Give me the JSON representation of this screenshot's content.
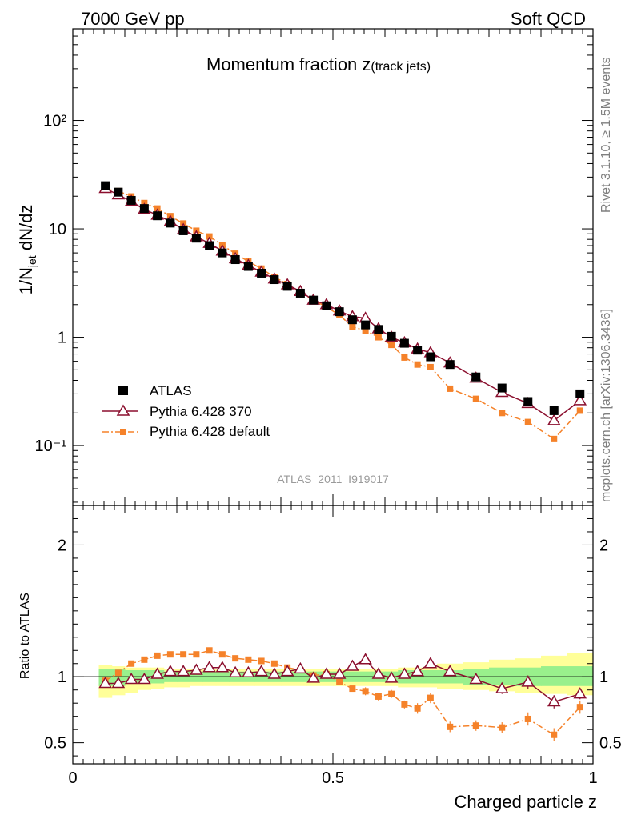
{
  "header": {
    "left": "7000 GeV pp",
    "right": "Soft QCD"
  },
  "side_labels": {
    "rivet": "Rivet 3.1.10, ≥ 1.5M events",
    "mcplots": "mcplots.cern.ch [arXiv:1306.3436]"
  },
  "colors": {
    "atlas": "#000000",
    "pythia370": "#8b0f2e",
    "pythia_default": "#f5822a",
    "band_inner": "#99f08c",
    "band_outer": "#ffff99"
  },
  "chart_data": [
    {
      "type": "scatter",
      "title": "Momentum fraction z",
      "title_sub": "(track jets)",
      "analysis_label": "ATLAS_2011_I919017",
      "ylabel_main": "1/N",
      "ylabel_sub": "jet",
      "ylabel_rest": " dN/dz",
      "yscale": "log",
      "ylim": [
        0.028,
        700
      ],
      "xlim": [
        0,
        1
      ],
      "ytick_labels": [
        "10⁻¹",
        "1",
        "10",
        "10²"
      ],
      "ytick_values": [
        0.1,
        1,
        10,
        100
      ],
      "legend_position": "lower-left",
      "x": [
        0.0625,
        0.0875,
        0.1125,
        0.1375,
        0.1625,
        0.1875,
        0.2125,
        0.2375,
        0.2625,
        0.2875,
        0.3125,
        0.3375,
        0.3625,
        0.3875,
        0.4125,
        0.4375,
        0.4625,
        0.4875,
        0.5125,
        0.5375,
        0.5625,
        0.5875,
        0.6125,
        0.6375,
        0.6625,
        0.6875,
        0.725,
        0.775,
        0.825,
        0.875,
        0.925,
        0.975
      ],
      "series": [
        {
          "name": "ATLAS",
          "marker": "filled-square",
          "values": [
            25.0,
            21.8,
            18.3,
            15.4,
            13.2,
            11.3,
            9.6,
            8.2,
            7.0,
            6.0,
            5.2,
            4.5,
            3.9,
            3.4,
            2.95,
            2.55,
            2.2,
            1.95,
            1.72,
            1.45,
            1.3,
            1.18,
            1.02,
            0.88,
            0.76,
            0.66,
            0.56,
            0.43,
            0.34,
            0.255,
            0.21,
            0.3
          ]
        },
        {
          "name": "Pythia 6.428 370",
          "marker": "open-triangle",
          "values": [
            23.6,
            20.6,
            17.9,
            15.1,
            13.4,
            11.7,
            9.85,
            8.45,
            7.35,
            6.25,
            5.3,
            4.6,
            4.0,
            3.45,
            3.05,
            2.65,
            2.2,
            2.0,
            1.75,
            1.55,
            1.5,
            1.2,
            1.0,
            0.89,
            0.78,
            0.72,
            0.58,
            0.42,
            0.31,
            0.245,
            0.17,
            0.26
          ]
        },
        {
          "name": "Pythia 6.428 default",
          "marker": "small-square-dashdot",
          "values": [
            23.2,
            22.3,
            19.9,
            17.3,
            15.4,
            13.1,
            11.2,
            9.6,
            8.5,
            7.1,
            5.9,
            5.0,
            4.3,
            3.6,
            3.1,
            2.6,
            2.2,
            1.9,
            1.6,
            1.25,
            1.15,
            1.0,
            0.85,
            0.65,
            0.56,
            0.53,
            0.335,
            0.27,
            0.2,
            0.165,
            0.115,
            0.21
          ]
        }
      ]
    },
    {
      "type": "scatter",
      "title": "Ratio to ATLAS",
      "xlabel": "Charged particle z",
      "ylabel": "Ratio to ATLAS",
      "xlim": [
        0,
        1
      ],
      "ylim": [
        0.34,
        2.3
      ],
      "xtick_labels": [
        "0",
        "0.5",
        "1"
      ],
      "xtick_values": [
        0,
        0.5,
        1
      ],
      "ytick_labels": [
        "0.5",
        "1",
        "2"
      ],
      "ytick_values": [
        0.5,
        1,
        2
      ],
      "x": [
        0.0625,
        0.0875,
        0.1125,
        0.1375,
        0.1625,
        0.1875,
        0.2125,
        0.2375,
        0.2625,
        0.2875,
        0.3125,
        0.3375,
        0.3625,
        0.3875,
        0.4125,
        0.4375,
        0.4625,
        0.4875,
        0.5125,
        0.5375,
        0.5625,
        0.5875,
        0.6125,
        0.6375,
        0.6625,
        0.6875,
        0.725,
        0.775,
        0.825,
        0.875,
        0.925,
        0.975
      ],
      "bin_edges": [
        0.05,
        0.075,
        0.1,
        0.125,
        0.15,
        0.175,
        0.2,
        0.225,
        0.25,
        0.275,
        0.3,
        0.325,
        0.35,
        0.375,
        0.4,
        0.425,
        0.45,
        0.475,
        0.5,
        0.525,
        0.55,
        0.575,
        0.6,
        0.625,
        0.65,
        0.675,
        0.7,
        0.75,
        0.8,
        0.85,
        0.9,
        0.95,
        1.0
      ],
      "band_inner": [
        [
          0.93,
          1.06
        ],
        [
          0.93,
          1.06
        ],
        [
          0.95,
          1.05
        ],
        [
          0.95,
          1.05
        ],
        [
          0.95,
          1.05
        ],
        [
          0.96,
          1.04
        ],
        [
          0.96,
          1.04
        ],
        [
          0.96,
          1.04
        ],
        [
          0.96,
          1.04
        ],
        [
          0.96,
          1.04
        ],
        [
          0.96,
          1.04
        ],
        [
          0.96,
          1.04
        ],
        [
          0.96,
          1.04
        ],
        [
          0.96,
          1.04
        ],
        [
          0.96,
          1.04
        ],
        [
          0.96,
          1.04
        ],
        [
          0.96,
          1.04
        ],
        [
          0.96,
          1.04
        ],
        [
          0.96,
          1.04
        ],
        [
          0.96,
          1.04
        ],
        [
          0.96,
          1.04
        ],
        [
          0.96,
          1.04
        ],
        [
          0.96,
          1.04
        ],
        [
          0.95,
          1.05
        ],
        [
          0.95,
          1.05
        ],
        [
          0.95,
          1.05
        ],
        [
          0.95,
          1.05
        ],
        [
          0.94,
          1.06
        ],
        [
          0.94,
          1.07
        ],
        [
          0.93,
          1.07
        ],
        [
          0.93,
          1.08
        ],
        [
          0.93,
          1.08
        ]
      ],
      "band_outer": [
        [
          0.84,
          1.09
        ],
        [
          0.86,
          1.08
        ],
        [
          0.88,
          1.07
        ],
        [
          0.9,
          1.07
        ],
        [
          0.91,
          1.07
        ],
        [
          0.92,
          1.06
        ],
        [
          0.92,
          1.06
        ],
        [
          0.93,
          1.06
        ],
        [
          0.93,
          1.06
        ],
        [
          0.93,
          1.06
        ],
        [
          0.93,
          1.06
        ],
        [
          0.93,
          1.06
        ],
        [
          0.93,
          1.06
        ],
        [
          0.93,
          1.06
        ],
        [
          0.93,
          1.06
        ],
        [
          0.93,
          1.06
        ],
        [
          0.93,
          1.06
        ],
        [
          0.93,
          1.06
        ],
        [
          0.93,
          1.06
        ],
        [
          0.93,
          1.06
        ],
        [
          0.93,
          1.06
        ],
        [
          0.93,
          1.06
        ],
        [
          0.93,
          1.06
        ],
        [
          0.92,
          1.07
        ],
        [
          0.92,
          1.07
        ],
        [
          0.92,
          1.07
        ],
        [
          0.91,
          1.1
        ],
        [
          0.9,
          1.11
        ],
        [
          0.89,
          1.13
        ],
        [
          0.88,
          1.14
        ],
        [
          0.87,
          1.16
        ],
        [
          0.86,
          1.18
        ]
      ],
      "series": [
        {
          "name": "Pythia 6.428 370",
          "marker": "open-triangle",
          "values": [
            0.95,
            0.95,
            0.98,
            0.98,
            1.02,
            1.04,
            1.04,
            1.05,
            1.07,
            1.07,
            1.03,
            1.03,
            1.04,
            1.02,
            1.04,
            1.06,
            0.99,
            1.02,
            1.02,
            1.08,
            1.13,
            1.02,
            0.99,
            1.02,
            1.04,
            1.1,
            1.04,
            0.98,
            0.91,
            0.96,
            0.81,
            0.87
          ],
          "errors": [
            0.02,
            0.02,
            0.02,
            0.02,
            0.02,
            0.02,
            0.02,
            0.02,
            0.02,
            0.02,
            0.02,
            0.02,
            0.02,
            0.02,
            0.02,
            0.02,
            0.02,
            0.02,
            0.02,
            0.03,
            0.03,
            0.03,
            0.03,
            0.03,
            0.03,
            0.03,
            0.03,
            0.03,
            0.04,
            0.05,
            0.05,
            0.04
          ]
        },
        {
          "name": "Pythia 6.428 default",
          "marker": "small-square-dashdot",
          "values": [
            0.97,
            1.03,
            1.1,
            1.13,
            1.16,
            1.17,
            1.17,
            1.17,
            1.2,
            1.17,
            1.14,
            1.13,
            1.12,
            1.1,
            1.07,
            1.05,
            1.01,
            1.02,
            0.96,
            0.91,
            0.89,
            0.85,
            0.87,
            0.79,
            0.76,
            0.84,
            0.62,
            0.63,
            0.615,
            0.68,
            0.56,
            0.77
          ],
          "errors": [
            0.02,
            0.02,
            0.02,
            0.02,
            0.02,
            0.02,
            0.02,
            0.02,
            0.02,
            0.02,
            0.02,
            0.02,
            0.02,
            0.02,
            0.02,
            0.02,
            0.02,
            0.02,
            0.02,
            0.02,
            0.03,
            0.03,
            0.03,
            0.03,
            0.04,
            0.04,
            0.04,
            0.04,
            0.04,
            0.05,
            0.05,
            0.05
          ]
        }
      ]
    }
  ]
}
